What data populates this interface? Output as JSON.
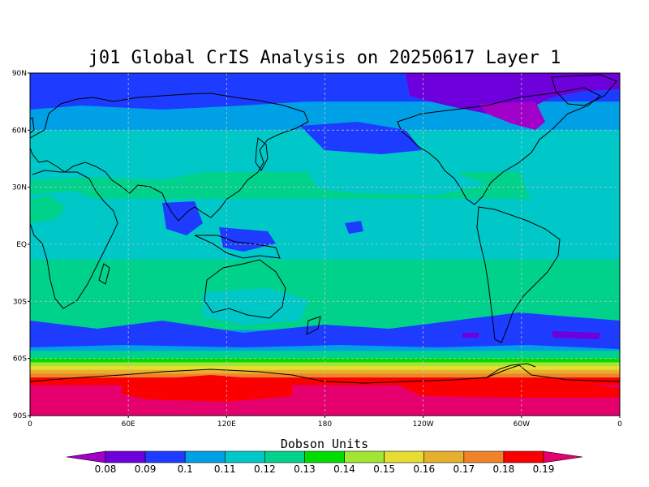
{
  "title": "j01 Global CrIS Analysis on 20250617 Layer 1",
  "units_label": "Dobson Units",
  "lat_ticks": [
    "90N",
    "60N",
    "30N",
    "EQ",
    "30S",
    "60S",
    "90S"
  ],
  "lon_ticks": [
    "0",
    "60E",
    "120E",
    "180",
    "120W",
    "60W",
    "0"
  ],
  "colorbar": {
    "labels": [
      "0.08",
      "0.09",
      "0.1",
      "0.11",
      "0.12",
      "0.13",
      "0.14",
      "0.15",
      "0.16",
      "0.17",
      "0.18",
      "0.19"
    ],
    "colors": [
      "#a000c8",
      "#6e00dc",
      "#1e3cff",
      "#00a0e6",
      "#00c8c8",
      "#00d28c",
      "#00dc00",
      "#a0e632",
      "#e6dc32",
      "#e6af2d",
      "#f08228",
      "#fa0000",
      "#e6006e"
    ]
  },
  "chart_data": {
    "type": "heatmap",
    "title": "j01 Global CrIS Analysis on 20250617 Layer 1",
    "units": "Dobson Units",
    "lon_range": [
      0,
      360
    ],
    "lat_range": [
      -90,
      90
    ],
    "grid": true,
    "colorbar_placement": "bottom",
    "zonal_bands": [
      {
        "lat_top": 90,
        "lat_bottom": 75,
        "value": 0.09
      },
      {
        "lat_top": 75,
        "lat_bottom": 60,
        "value": 0.1
      },
      {
        "lat_top": 60,
        "lat_bottom": 38,
        "value": 0.11
      },
      {
        "lat_top": 38,
        "lat_bottom": 24,
        "value": 0.12
      },
      {
        "lat_top": 24,
        "lat_bottom": -8,
        "value": 0.11
      },
      {
        "lat_top": -8,
        "lat_bottom": -45,
        "value": 0.12
      },
      {
        "lat_top": -45,
        "lat_bottom": -56,
        "value": 0.1
      },
      {
        "lat_top": -56,
        "lat_bottom": -60,
        "value": 0.12
      },
      {
        "lat_top": -60,
        "lat_bottom": -62,
        "value": 0.13
      },
      {
        "lat_top": -62,
        "lat_bottom": -64,
        "value": 0.14
      },
      {
        "lat_top": -64,
        "lat_bottom": -66,
        "value": 0.15
      },
      {
        "lat_top": -66,
        "lat_bottom": -68,
        "value": 0.16
      },
      {
        "lat_top": -68,
        "lat_bottom": -70,
        "value": 0.17
      },
      {
        "lat_top": -70,
        "lat_bottom": -74,
        "value": 0.18
      },
      {
        "lat_top": -74,
        "lat_bottom": -90,
        "value": 0.19
      }
    ]
  }
}
